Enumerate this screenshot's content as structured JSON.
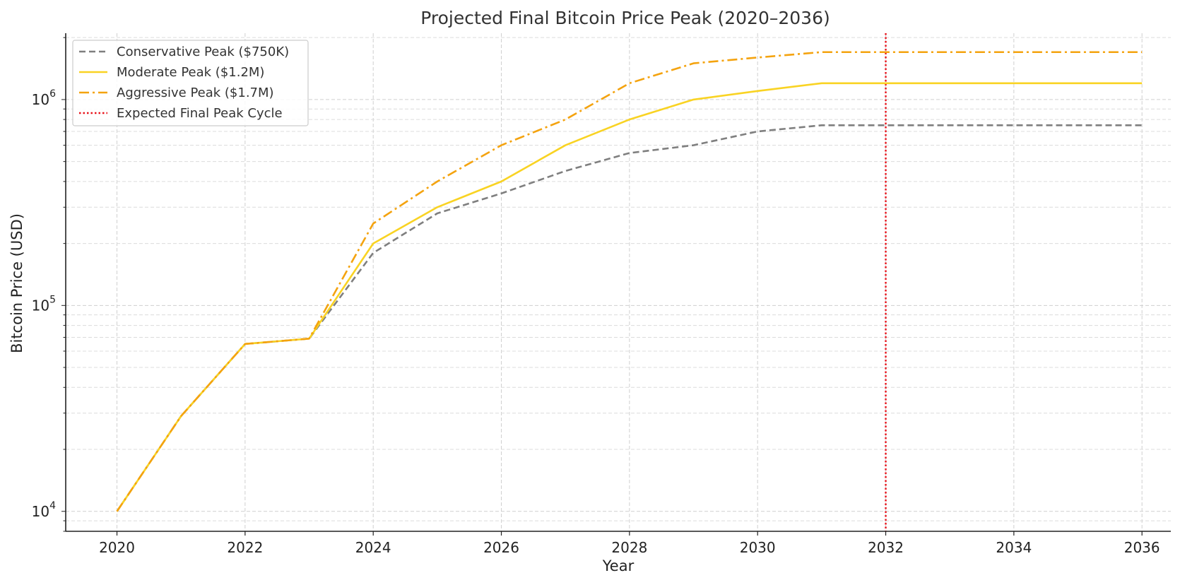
{
  "chart_data": {
    "type": "line",
    "title": "Projected Final Bitcoin Price Peak (2020–2036)",
    "xlabel": "Year",
    "ylabel": "Bitcoin Price (USD)",
    "yscale": "log",
    "xlim": [
      2019.2,
      2036.45
    ],
    "ylim": [
      8000,
      2100000
    ],
    "xticks": [
      2020,
      2022,
      2024,
      2026,
      2028,
      2030,
      2032,
      2034,
      2036
    ],
    "yticks": [
      {
        "value": 10000,
        "base": "10",
        "exp": "4"
      },
      {
        "value": 100000,
        "base": "10",
        "exp": "5"
      },
      {
        "value": 1000000,
        "base": "10",
        "exp": "6"
      }
    ],
    "grid": true,
    "legend_position": "top-left",
    "x": [
      2020,
      2021,
      2022,
      2023,
      2024,
      2025,
      2026,
      2027,
      2028,
      2029,
      2030,
      2031,
      2032,
      2033,
      2034,
      2035,
      2036
    ],
    "series": [
      {
        "name": "Conservative Peak ($750K)",
        "color": "#7f7f7f",
        "style": "dashed",
        "values": [
          10000,
          29000,
          65000,
          69000,
          180000,
          280000,
          350000,
          450000,
          550000,
          600000,
          700000,
          750000,
          750000,
          750000,
          750000,
          750000,
          750000
        ]
      },
      {
        "name": "Moderate Peak ($1.2M)",
        "color": "#f9d323",
        "style": "solid",
        "values": [
          10000,
          29000,
          65000,
          69000,
          200000,
          300000,
          400000,
          600000,
          800000,
          1000000,
          1100000,
          1200000,
          1200000,
          1200000,
          1200000,
          1200000,
          1200000
        ]
      },
      {
        "name": "Aggressive Peak ($1.7M)",
        "color": "#f4a30f",
        "style": "dashdot",
        "values": [
          10000,
          29000,
          65000,
          69000,
          250000,
          400000,
          600000,
          800000,
          1200000,
          1500000,
          1600000,
          1700000,
          1700000,
          1700000,
          1700000,
          1700000,
          1700000
        ]
      }
    ],
    "vlines": [
      {
        "name": "Expected Final Peak Cycle",
        "x": 2032,
        "color": "#e8141c",
        "style": "dotted"
      }
    ]
  }
}
